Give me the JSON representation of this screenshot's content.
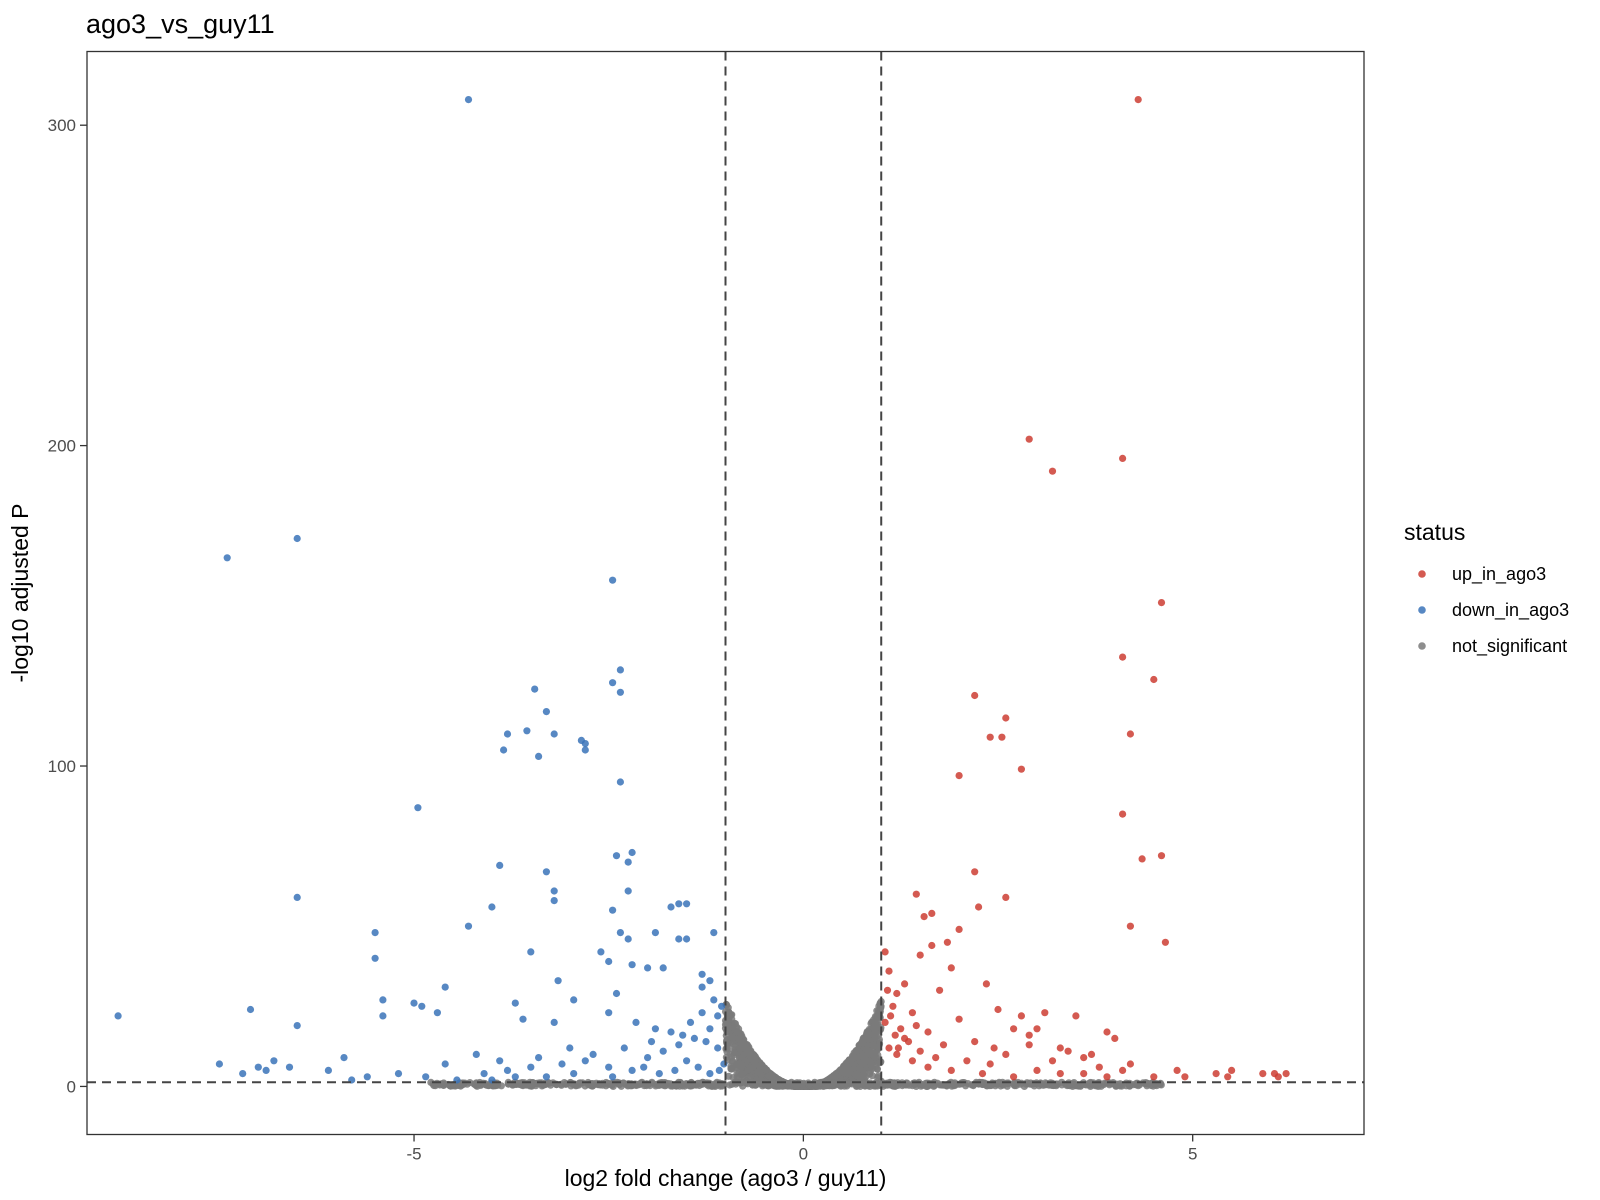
{
  "chart_data": {
    "type": "scatter",
    "title": "ago3_vs_guy11",
    "xlabel": "log2 fold change (ago3 / guy11)",
    "ylabel": "-log10 adjusted P",
    "xlim": [
      -9.2,
      7.2
    ],
    "ylim": [
      -15,
      323
    ],
    "x_ticks": [
      "-5",
      "0",
      "5"
    ],
    "x_tick_values": [
      -5,
      0,
      5
    ],
    "y_ticks": [
      "0",
      "100",
      "200",
      "300"
    ],
    "y_tick_values": [
      0,
      100,
      200,
      300
    ],
    "grid": false,
    "thresholds": {
      "x": [
        -1,
        1
      ],
      "y": 1.3,
      "style": "dashed"
    },
    "legend": {
      "title": "status",
      "position": "right",
      "entries": [
        {
          "label": "up_in_ago3",
          "color": "#cc3d33"
        },
        {
          "label": "down_in_ago3",
          "color": "#3a73b8"
        },
        {
          "label": "not_significant",
          "color": "#7a7a7a"
        }
      ]
    },
    "series": [
      {
        "name": "up_in_ago3",
        "color": "#cc3d33",
        "points": [
          [
            4.3,
            308
          ],
          [
            2.9,
            202
          ],
          [
            4.1,
            196
          ],
          [
            3.2,
            192
          ],
          [
            4.6,
            151
          ],
          [
            4.1,
            134
          ],
          [
            4.5,
            127
          ],
          [
            2.2,
            122
          ],
          [
            2.6,
            115
          ],
          [
            4.2,
            110
          ],
          [
            2.4,
            109
          ],
          [
            2.55,
            109
          ],
          [
            2.8,
            99
          ],
          [
            2.0,
            97
          ],
          [
            4.1,
            85
          ],
          [
            4.35,
            71
          ],
          [
            4.6,
            72
          ],
          [
            2.2,
            67
          ],
          [
            1.45,
            60
          ],
          [
            2.6,
            59
          ],
          [
            2.25,
            56
          ],
          [
            1.65,
            54
          ],
          [
            1.55,
            53
          ],
          [
            4.2,
            50
          ],
          [
            2.0,
            49
          ],
          [
            1.85,
            45
          ],
          [
            4.65,
            45
          ],
          [
            1.65,
            44
          ],
          [
            1.05,
            42
          ],
          [
            1.5,
            41
          ],
          [
            1.9,
            37
          ],
          [
            1.1,
            36
          ],
          [
            2.35,
            32
          ],
          [
            1.3,
            32
          ],
          [
            1.75,
            30
          ],
          [
            1.2,
            29
          ],
          [
            2.5,
            24
          ],
          [
            1.4,
            23
          ],
          [
            2.8,
            22
          ],
          [
            3.1,
            23
          ],
          [
            3.5,
            22
          ],
          [
            2.0,
            21
          ],
          [
            2.7,
            18
          ],
          [
            3.0,
            18
          ],
          [
            3.9,
            17
          ],
          [
            4.0,
            15
          ],
          [
            2.9,
            16
          ],
          [
            1.3,
            15
          ],
          [
            1.8,
            13
          ],
          [
            3.4,
            11
          ],
          [
            3.7,
            10
          ],
          [
            4.2,
            7
          ],
          [
            4.8,
            5
          ],
          [
            5.3,
            4
          ],
          [
            5.5,
            5
          ],
          [
            5.9,
            4
          ],
          [
            6.05,
            4
          ],
          [
            6.2,
            4
          ],
          [
            6.1,
            3
          ],
          [
            5.45,
            3
          ],
          [
            4.9,
            3
          ],
          [
            4.5,
            3
          ],
          [
            1.1,
            12
          ],
          [
            1.2,
            10
          ],
          [
            1.4,
            8
          ],
          [
            1.6,
            6
          ],
          [
            1.9,
            5
          ],
          [
            2.3,
            4
          ],
          [
            2.7,
            3
          ],
          [
            3.0,
            5
          ],
          [
            3.3,
            4
          ],
          [
            3.6,
            4
          ],
          [
            3.9,
            3
          ],
          [
            1.05,
            20
          ],
          [
            1.15,
            25
          ],
          [
            1.25,
            18
          ],
          [
            1.35,
            14
          ],
          [
            1.5,
            11
          ],
          [
            1.7,
            9
          ],
          [
            2.1,
            8
          ],
          [
            2.4,
            7
          ],
          [
            2.6,
            10
          ],
          [
            3.2,
            8
          ],
          [
            3.8,
            6
          ],
          [
            4.1,
            5
          ],
          [
            1.08,
            30
          ],
          [
            1.12,
            22
          ],
          [
            1.18,
            16
          ],
          [
            1.22,
            12
          ],
          [
            1.45,
            19
          ],
          [
            1.6,
            17
          ],
          [
            2.2,
            14
          ],
          [
            2.45,
            12
          ],
          [
            2.9,
            13
          ],
          [
            3.3,
            12
          ],
          [
            3.6,
            9
          ]
        ]
      },
      {
        "name": "down_in_ago3",
        "color": "#3a73b8",
        "points": [
          [
            -4.3,
            308
          ],
          [
            -6.5,
            171
          ],
          [
            -7.4,
            165
          ],
          [
            -2.45,
            158
          ],
          [
            -2.35,
            130
          ],
          [
            -2.45,
            126
          ],
          [
            -2.35,
            123
          ],
          [
            -3.45,
            124
          ],
          [
            -3.3,
            117
          ],
          [
            -3.55,
            111
          ],
          [
            -3.8,
            110
          ],
          [
            -2.85,
            108
          ],
          [
            -2.8,
            107
          ],
          [
            -3.2,
            110
          ],
          [
            -3.85,
            105
          ],
          [
            -3.4,
            103
          ],
          [
            -2.8,
            105
          ],
          [
            -2.35,
            95
          ],
          [
            -4.95,
            87
          ],
          [
            -2.2,
            73
          ],
          [
            -2.4,
            72
          ],
          [
            -2.25,
            70
          ],
          [
            -3.9,
            69
          ],
          [
            -3.3,
            67
          ],
          [
            -2.25,
            61
          ],
          [
            -3.2,
            61
          ],
          [
            -3.2,
            58
          ],
          [
            -6.5,
            59
          ],
          [
            -4.0,
            56
          ],
          [
            -1.5,
            57
          ],
          [
            -1.6,
            57
          ],
          [
            -1.7,
            56
          ],
          [
            -2.45,
            55
          ],
          [
            -4.3,
            50
          ],
          [
            -5.5,
            48
          ],
          [
            -1.15,
            48
          ],
          [
            -2.35,
            48
          ],
          [
            -1.9,
            48
          ],
          [
            -2.25,
            46
          ],
          [
            -1.5,
            46
          ],
          [
            -1.6,
            46
          ],
          [
            -3.5,
            42
          ],
          [
            -5.5,
            40
          ],
          [
            -2.6,
            42
          ],
          [
            -2.5,
            39
          ],
          [
            -2.2,
            38
          ],
          [
            -2.0,
            37
          ],
          [
            -1.8,
            37
          ],
          [
            -1.3,
            35
          ],
          [
            -1.2,
            33
          ],
          [
            -3.15,
            33
          ],
          [
            -1.3,
            31
          ],
          [
            -4.6,
            31
          ],
          [
            -2.4,
            29
          ],
          [
            -5.4,
            27
          ],
          [
            -5.0,
            26
          ],
          [
            -4.9,
            25
          ],
          [
            -3.7,
            26
          ],
          [
            -4.7,
            23
          ],
          [
            -8.8,
            22
          ],
          [
            -7.1,
            24
          ],
          [
            -5.4,
            22
          ],
          [
            -6.5,
            19
          ],
          [
            -3.6,
            21
          ],
          [
            -3.2,
            20
          ],
          [
            -2.95,
            27
          ],
          [
            -2.5,
            23
          ],
          [
            -2.15,
            20
          ],
          [
            -1.9,
            18
          ],
          [
            -1.55,
            16
          ],
          [
            -1.25,
            14
          ],
          [
            -1.1,
            12
          ],
          [
            -7.5,
            7
          ],
          [
            -7.0,
            6
          ],
          [
            -6.8,
            8
          ],
          [
            -6.6,
            6
          ],
          [
            -5.9,
            9
          ],
          [
            -5.2,
            4
          ],
          [
            -4.85,
            3
          ],
          [
            -4.45,
            2
          ],
          [
            -4.1,
            4
          ],
          [
            -3.8,
            5
          ],
          [
            -3.5,
            6
          ],
          [
            -3.1,
            7
          ],
          [
            -2.8,
            8
          ],
          [
            -2.5,
            6
          ],
          [
            -2.2,
            5
          ],
          [
            -2.0,
            9
          ],
          [
            -1.8,
            11
          ],
          [
            -1.6,
            13
          ],
          [
            -1.4,
            15
          ],
          [
            -1.2,
            18
          ],
          [
            -1.1,
            22
          ],
          [
            -1.05,
            25
          ],
          [
            -1.15,
            27
          ],
          [
            -1.3,
            23
          ],
          [
            -1.45,
            20
          ],
          [
            -1.7,
            17
          ],
          [
            -1.95,
            14
          ],
          [
            -2.3,
            12
          ],
          [
            -2.7,
            10
          ],
          [
            -3.0,
            12
          ],
          [
            -3.4,
            9
          ],
          [
            -3.9,
            8
          ],
          [
            -4.2,
            10
          ],
          [
            -4.6,
            7
          ],
          [
            -5.6,
            3
          ],
          [
            -5.8,
            2
          ],
          [
            -6.1,
            5
          ],
          [
            -6.9,
            5
          ],
          [
            -7.2,
            4
          ],
          [
            -1.02,
            7
          ],
          [
            -1.08,
            5
          ],
          [
            -1.2,
            4
          ],
          [
            -1.35,
            6
          ],
          [
            -1.5,
            8
          ],
          [
            -1.65,
            5
          ],
          [
            -1.85,
            4
          ],
          [
            -2.05,
            6
          ],
          [
            -2.45,
            3
          ],
          [
            -2.95,
            4
          ],
          [
            -3.3,
            3
          ],
          [
            -3.7,
            3
          ],
          [
            -4.0,
            2
          ]
        ]
      },
      {
        "name": "not_significant",
        "color": "#7a7a7a",
        "generated": "symmetric V-shaped cloud: |log2FC| <= 1 with -log10 P rising toward the x = ±1 thresholds (max ≈ 27), plus a low band (-log10 P < 1.3) spanning log2FC -4.8 to 4.6"
      }
    ]
  }
}
